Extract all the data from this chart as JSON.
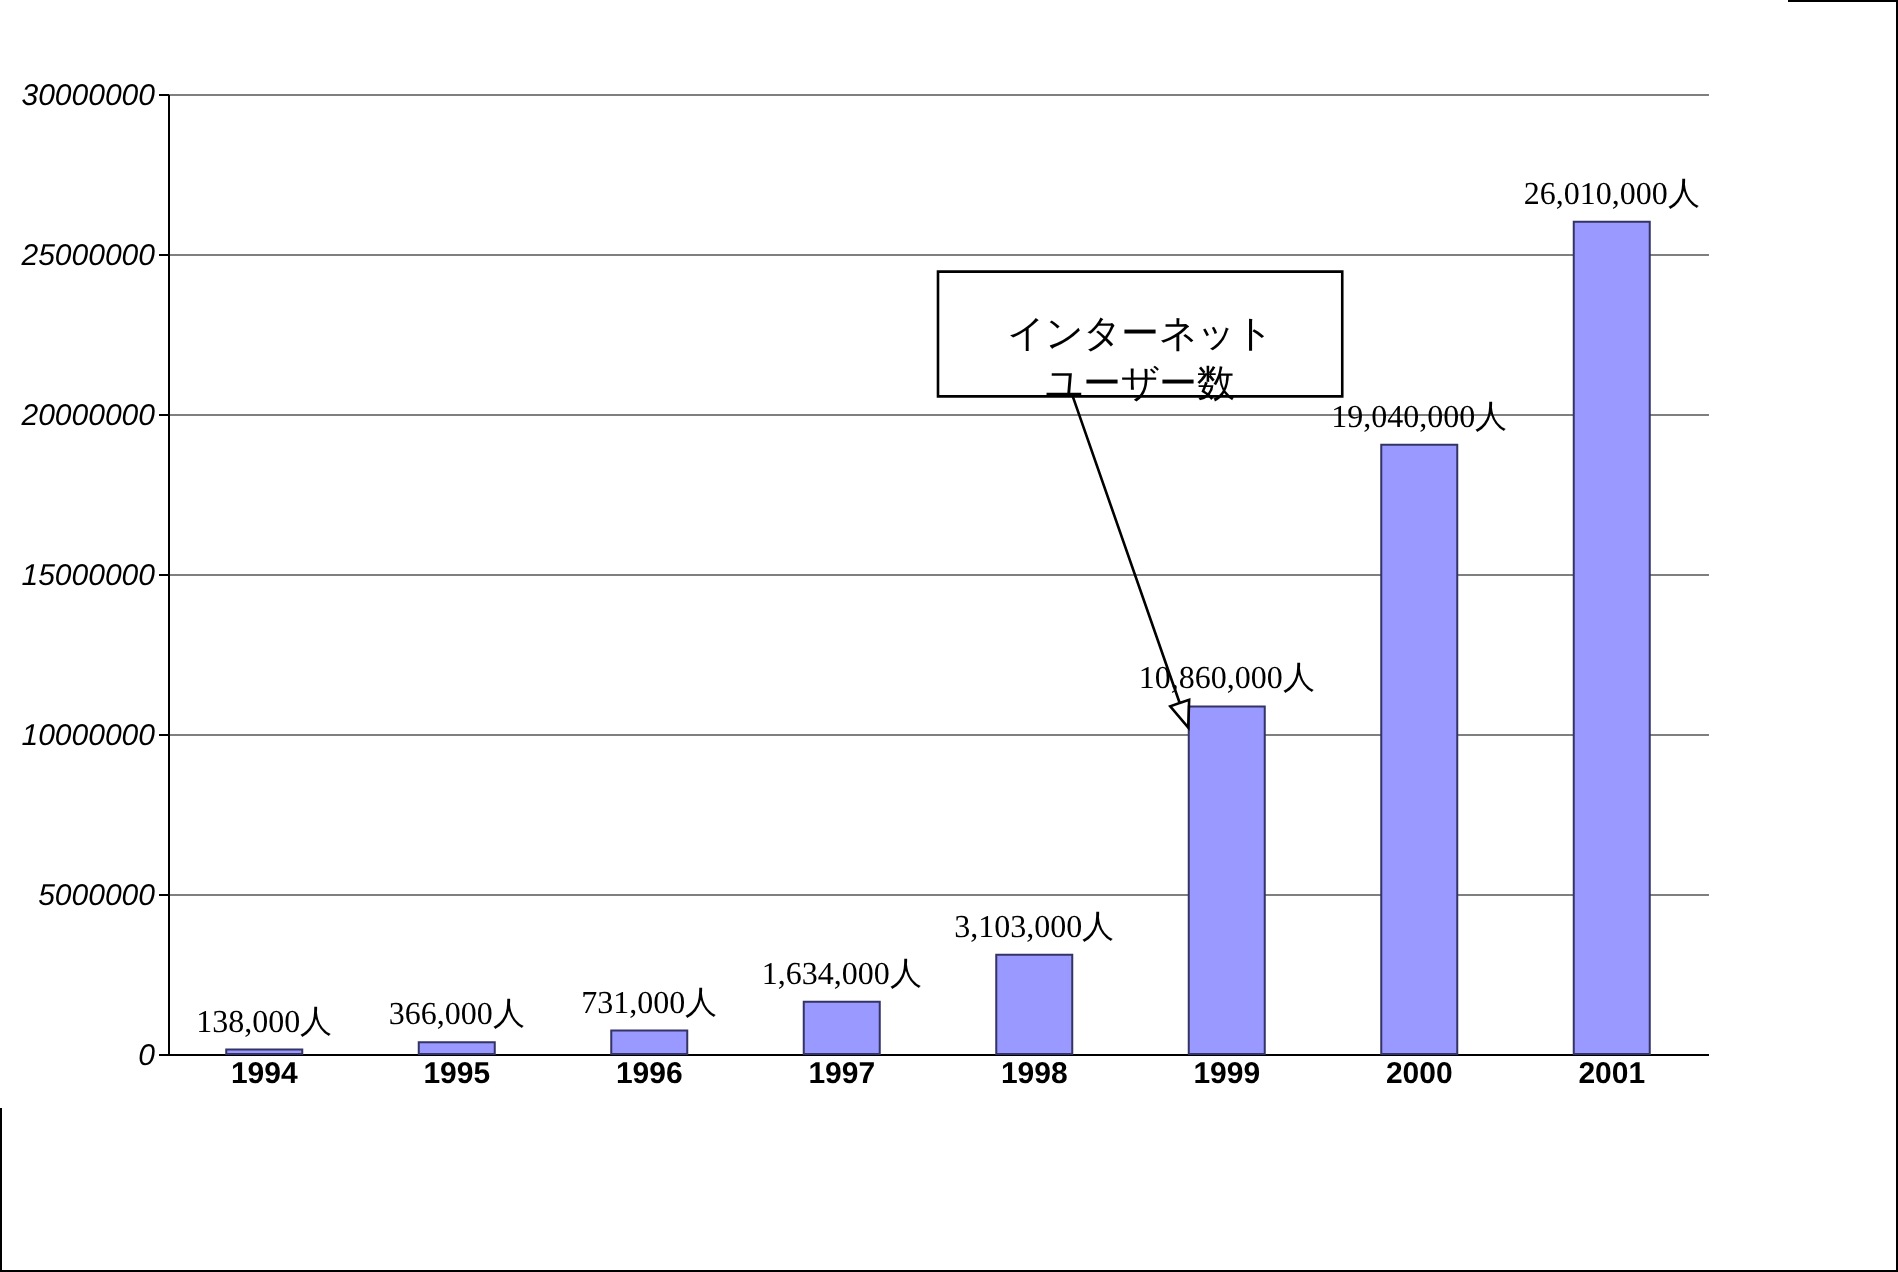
{
  "chart_data": {
    "type": "bar",
    "categories": [
      "1994",
      "1995",
      "1996",
      "1997",
      "1998",
      "1999",
      "2000",
      "2001"
    ],
    "values": [
      138000,
      366000,
      731000,
      1634000,
      3103000,
      10860000,
      19040000,
      26010000
    ],
    "color": "#9999ff",
    "value_labels": [
      "138,000人",
      "366,000人",
      "731,000人",
      "1,634,000人",
      "3,103,000人",
      "10,860,000人",
      "19,040,000人",
      "26,010,000人"
    ],
    "ylim": [
      0,
      30000000
    ],
    "yticks": [
      0,
      5000000,
      10000000,
      15000000,
      20000000,
      25000000,
      30000000
    ],
    "grid": "y",
    "legend": false,
    "annotations": [
      "インターネットユーザー数"
    ]
  }
}
